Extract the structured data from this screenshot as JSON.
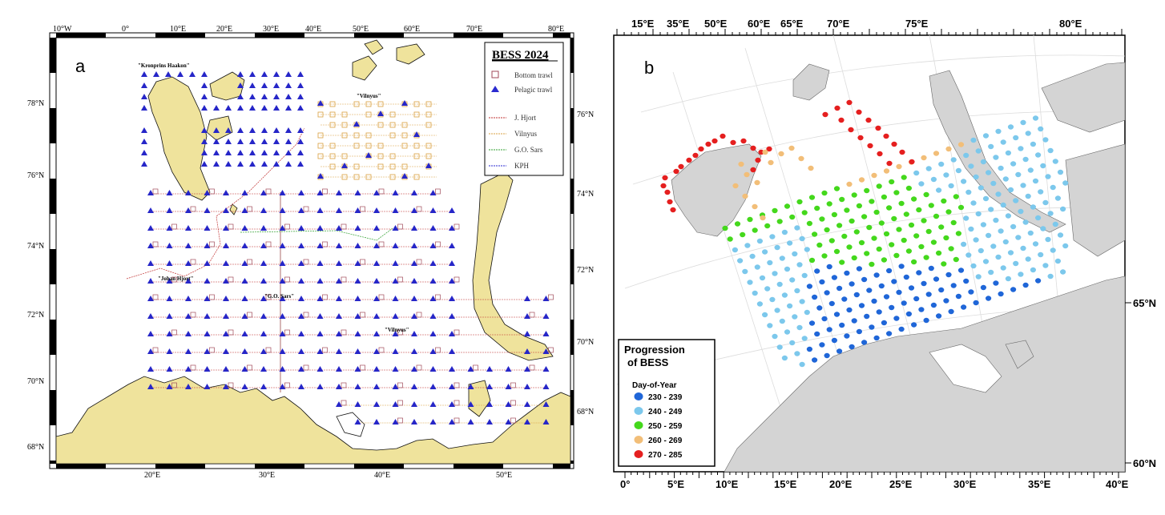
{
  "panel_a": {
    "label": "a",
    "top_ticks": [
      "10°W",
      "0°",
      "10°E",
      "20°E",
      "30°E",
      "40°E",
      "50°E",
      "60°E",
      "70°E",
      "80°E"
    ],
    "bottom_ticks": [
      "20°E",
      "30°E",
      "40°E",
      "50°E"
    ],
    "left_ticks": [
      "78°N",
      "76°N",
      "74°N",
      "72°N",
      "70°N",
      "68°N"
    ],
    "right_ticks": [
      "76°N",
      "74°N",
      "72°N",
      "70°N",
      "68°N"
    ],
    "ship_labels": [
      "\"Kronprins Haakon\"",
      "\"Vilnyus\"",
      "\"Johan Hjort\"",
      "\"G.O. Sars\"",
      "\"Vilnyus\""
    ],
    "legend": {
      "title": "BESS 2024",
      "items": [
        {
          "label": "Bottom trawl",
          "symbol": "square",
          "color": "#a04a5a"
        },
        {
          "label": "Pelagic trawl",
          "symbol": "triangle",
          "color": "#2a2ad0"
        },
        {
          "label": "J. Hjort",
          "symbol": "line",
          "color": "#c03030"
        },
        {
          "label": "Vilnyus",
          "symbol": "line",
          "color": "#d9a040"
        },
        {
          "label": "G.O. Sars",
          "symbol": "line",
          "color": "#30a030"
        },
        {
          "label": "KPH",
          "symbol": "line",
          "color": "#2a2ad0"
        }
      ]
    },
    "colors": {
      "land": "#efe39c",
      "station_blue": "#2626c8",
      "route_orange": "#d9a040"
    }
  },
  "panel_b": {
    "label": "b",
    "top_ticks": [
      "15°E",
      "35°E",
      "50°E",
      "60°E",
      "65°E",
      "70°E",
      "75°E",
      "80°E"
    ],
    "bottom_ticks": [
      "0°",
      "5°E",
      "10°E",
      "15°E",
      "20°E",
      "25°E",
      "30°E",
      "35°E",
      "40°E"
    ],
    "right_ticks": [
      "65°N",
      "60°N"
    ],
    "legend": {
      "title": "Progression",
      "title2": "of BESS",
      "subtitle": "Day-of-Year",
      "items": [
        {
          "label": "230 - 239",
          "color": "#1f66d8"
        },
        {
          "label": "240 - 249",
          "color": "#7cc8ec"
        },
        {
          "label": "250 - 259",
          "color": "#44d81c"
        },
        {
          "label": "260 - 269",
          "color": "#f2be78"
        },
        {
          "label": "270 - 285",
          "color": "#e51f1f"
        }
      ]
    },
    "colors": {
      "land": "#d4d4d4"
    }
  }
}
